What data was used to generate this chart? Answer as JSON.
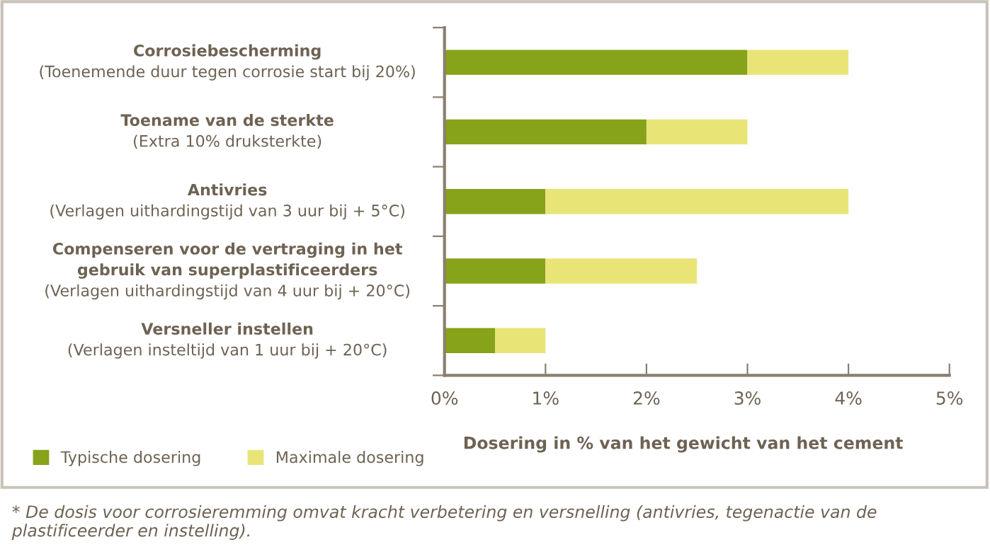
{
  "chart_data": {
    "type": "bar",
    "orientation": "horizontal",
    "stacked": true,
    "categories": [
      "Corrosiebescherming\n(Toenemende duur tegen corrosie start bij 20%)",
      "Toename van de sterkte\n(Extra 10% druksterkte)",
      "Antivries\n(Verlagen uithardingstijd van 3 uur bij + 5°C)",
      "Compenseren voor de vertraging in het\ngebruik van superplastificeerders\n(Verlagen uithardingstijd van 4 uur bij + 20°C)",
      "Versneller instellen\n(Verlagen insteltijd van 1 uur bij + 20°C)"
    ],
    "series": [
      {
        "name": "Typische dosering",
        "color": "#86a31a",
        "values": [
          3,
          2,
          1,
          1,
          0.5
        ]
      },
      {
        "name": "Maximale dosering",
        "color": "#e8e576",
        "values": [
          1,
          1,
          3,
          1.5,
          0.5
        ]
      }
    ],
    "xlim": [
      0,
      5
    ],
    "xticks": [
      {
        "value": 0,
        "label": "0%"
      },
      {
        "value": 1,
        "label": "1%"
      },
      {
        "value": 2,
        "label": "2%"
      },
      {
        "value": 3,
        "label": "3%"
      },
      {
        "value": 4,
        "label": "4%"
      },
      {
        "value": 5,
        "label": "5%"
      }
    ],
    "xlabel": "Dosering in % van het gewicht van het cement",
    "legend": "bottom left",
    "grid": false,
    "annotations": [
      "* De dosis voor corrosieremming omvat kracht verbetering en versnelling (antivries, tegenactie van de plastificeerder en instelling)."
    ]
  }
}
